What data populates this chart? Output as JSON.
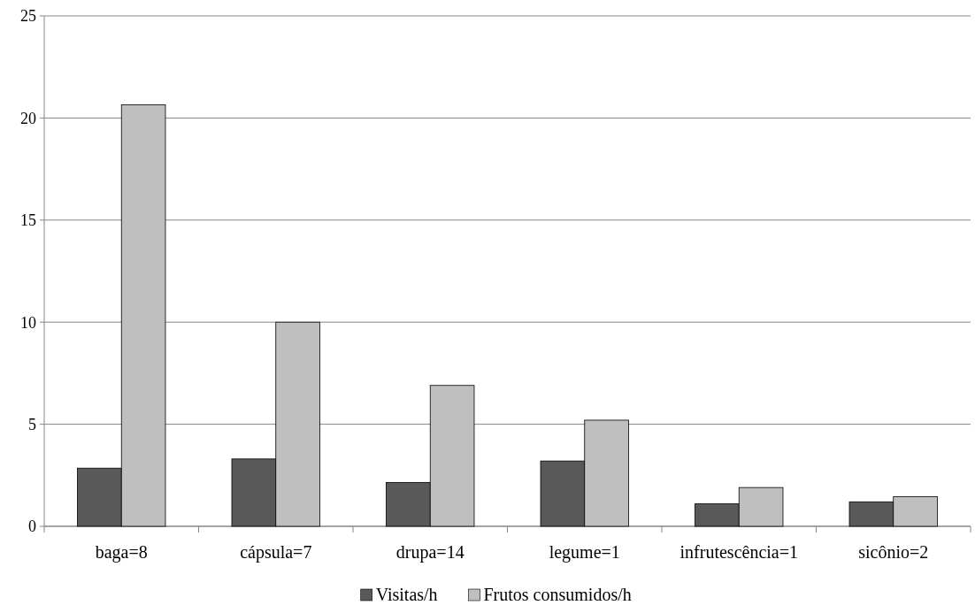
{
  "chart_data": {
    "type": "bar",
    "categories": [
      "baga=8",
      "cápsula=7",
      "drupa=14",
      "legume=1",
      "infrutescência=1",
      "sicônio=2"
    ],
    "series": [
      {
        "name": "Visitas/h",
        "color": "#595959",
        "values": [
          2.85,
          3.3,
          2.15,
          3.2,
          1.1,
          1.2
        ]
      },
      {
        "name": "Frutos consumidos/h",
        "color": "#bfbfbf",
        "values": [
          20.65,
          10,
          6.9,
          5.2,
          1.9,
          1.45
        ]
      }
    ],
    "ylim": [
      0,
      25
    ],
    "yticks": [
      0,
      5,
      10,
      15,
      20,
      25
    ],
    "grid": "y",
    "legend": "bottom"
  }
}
